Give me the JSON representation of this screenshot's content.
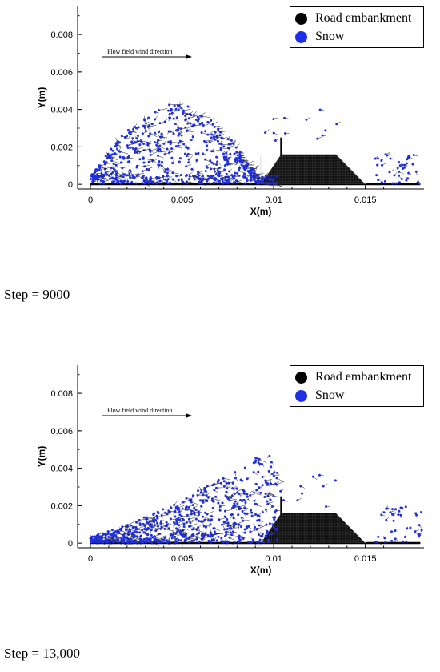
{
  "steps": [
    {
      "label": "Step = 9000"
    },
    {
      "label": "Step = 13,000"
    }
  ],
  "chart_data": [
    {
      "type": "scatter",
      "title": "",
      "xlabel": "X(m)",
      "ylabel": "Y(m)",
      "xlim": [
        -0.0007,
        0.0182
      ],
      "ylim": [
        -0.00025,
        0.0095
      ],
      "xticks": [
        "0",
        "0.005",
        "0.01",
        "0.015"
      ],
      "yticks": [
        "0",
        "0.002",
        "0.004",
        "0.006",
        "0.008"
      ],
      "annotation": "Flow field wind direction",
      "legend": {
        "position": "top-right",
        "entries": [
          {
            "name": "Road embankment",
            "color": "#000000"
          },
          {
            "name": "Snow",
            "color": "#1f2fe6"
          }
        ]
      },
      "embankment": {
        "x": [
          0.0093,
          0.0104,
          0.0134,
          0.015
        ],
        "y": [
          0,
          0.0016,
          0.0016,
          0
        ],
        "wall_x": 0.0104,
        "wall_top": 0.0025
      },
      "series": [
        {
          "name": "Snow",
          "distribution": "dome over 0–0.010 m, peak about 0.0043 m near x = 0.0045 m; scattered particles 0.015–0.018 m"
        }
      ]
    },
    {
      "type": "scatter",
      "title": "",
      "xlabel": "X(m)",
      "ylabel": "Y(m)",
      "xlim": [
        -0.0007,
        0.0182
      ],
      "ylim": [
        -0.00025,
        0.0095
      ],
      "xticks": [
        "0",
        "0.005",
        "0.01",
        "0.015"
      ],
      "yticks": [
        "0",
        "0.002",
        "0.004",
        "0.006",
        "0.008"
      ],
      "annotation": "Flow field wind direction",
      "legend": {
        "position": "top-right",
        "entries": [
          {
            "name": "Road embankment",
            "color": "#000000"
          },
          {
            "name": "Snow",
            "color": "#1f2fe6"
          }
        ]
      },
      "embankment": {
        "x": [
          0.0093,
          0.0104,
          0.0134,
          0.015
        ],
        "y": [
          0,
          0.0016,
          0.0016,
          0
        ],
        "wall_x": 0.0104,
        "wall_top": 0.0025
      },
      "series": [
        {
          "name": "Snow",
          "distribution": "particles rising toward embankment, up to about 0.0045 m near x = 0.0095 m; scattered particles 0.016–0.018 m"
        }
      ]
    }
  ]
}
